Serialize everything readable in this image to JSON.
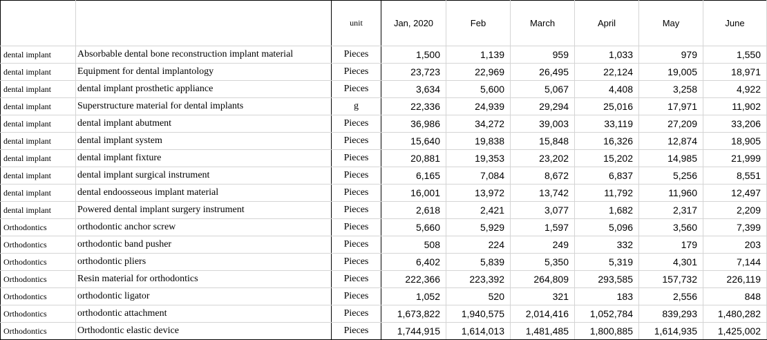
{
  "headers": {
    "category": "",
    "item": "",
    "unit": "unit",
    "months": [
      "Jan, 2020",
      "Feb",
      "March",
      "April",
      "May",
      "June"
    ]
  },
  "rows": [
    {
      "category": "dental implant",
      "item": "Absorbable dental bone reconstruction implant material",
      "unit": "Pieces",
      "values": [
        "1,500",
        "1,139",
        "959",
        "1,033",
        "979",
        "1,550"
      ]
    },
    {
      "category": "dental implant",
      "item": "Equipment for dental implantology",
      "unit": "Pieces",
      "values": [
        "23,723",
        "22,969",
        "26,495",
        "22,124",
        "19,005",
        "18,971"
      ]
    },
    {
      "category": "dental implant",
      "item": "dental implant prosthetic appliance",
      "unit": "Pieces",
      "values": [
        "3,634",
        "5,600",
        "5,067",
        "4,408",
        "3,258",
        "4,922"
      ]
    },
    {
      "category": "dental implant",
      "item": "Superstructure material for dental implants",
      "unit": "g",
      "values": [
        "22,336",
        "24,939",
        "29,294",
        "25,016",
        "17,971",
        "11,902"
      ]
    },
    {
      "category": "dental implant",
      "item": "dental implant abutment",
      "unit": "Pieces",
      "values": [
        "36,986",
        "34,272",
        "39,003",
        "33,119",
        "27,209",
        "33,206"
      ]
    },
    {
      "category": "dental implant",
      "item": "dental implant system",
      "unit": "Pieces",
      "values": [
        "15,640",
        "19,838",
        "15,848",
        "16,326",
        "12,874",
        "18,905"
      ]
    },
    {
      "category": "dental implant",
      "item": "dental implant fixture",
      "unit": "Pieces",
      "values": [
        "20,881",
        "19,353",
        "23,202",
        "15,202",
        "14,985",
        "21,999"
      ]
    },
    {
      "category": "dental implant",
      "item": "dental implant surgical instrument",
      "unit": "Pieces",
      "values": [
        "6,165",
        "7,084",
        "8,672",
        "6,837",
        "5,256",
        "8,551"
      ]
    },
    {
      "category": "dental implant",
      "item": "dental endoosseous implant material",
      "unit": "Pieces",
      "values": [
        "16,001",
        "13,972",
        "13,742",
        "11,792",
        "11,960",
        "12,497"
      ]
    },
    {
      "category": "dental implant",
      "item": "Powered dental implant surgery instrument",
      "unit": "Pieces",
      "values": [
        "2,618",
        "2,421",
        "3,077",
        "1,682",
        "2,317",
        "2,209"
      ]
    },
    {
      "category": "Orthodontics",
      "item": "orthodontic anchor screw",
      "unit": "Pieces",
      "values": [
        "5,660",
        "5,929",
        "1,597",
        "5,096",
        "3,560",
        "7,399"
      ]
    },
    {
      "category": "Orthodontics",
      "item": "orthodontic band pusher",
      "unit": "Pieces",
      "values": [
        "508",
        "224",
        "249",
        "332",
        "179",
        "203"
      ]
    },
    {
      "category": "Orthodontics",
      "item": "orthodontic pliers",
      "unit": "Pieces",
      "values": [
        "6,402",
        "5,839",
        "5,350",
        "5,319",
        "4,301",
        "7,144"
      ]
    },
    {
      "category": "Orthodontics",
      "item": "Resin material for orthodontics",
      "unit": "Pieces",
      "values": [
        "222,366",
        "223,392",
        "264,809",
        "293,585",
        "157,732",
        "226,119"
      ]
    },
    {
      "category": "Orthodontics",
      "item": "orthodontic ligator",
      "unit": "Pieces",
      "values": [
        "1,052",
        "520",
        "321",
        "183",
        "2,556",
        "848"
      ]
    },
    {
      "category": "Orthodontics",
      "item": "orthodontic attachment",
      "unit": "Pieces",
      "values": [
        "1,673,822",
        "1,940,575",
        "2,014,416",
        "1,052,784",
        "839,293",
        "1,480,282"
      ]
    },
    {
      "category": "Orthodontics",
      "item": "Orthodontic elastic device",
      "unit": "Pieces",
      "values": [
        "1,744,915",
        "1,614,013",
        "1,481,485",
        "1,800,885",
        "1,614,935",
        "1,425,002"
      ]
    }
  ]
}
